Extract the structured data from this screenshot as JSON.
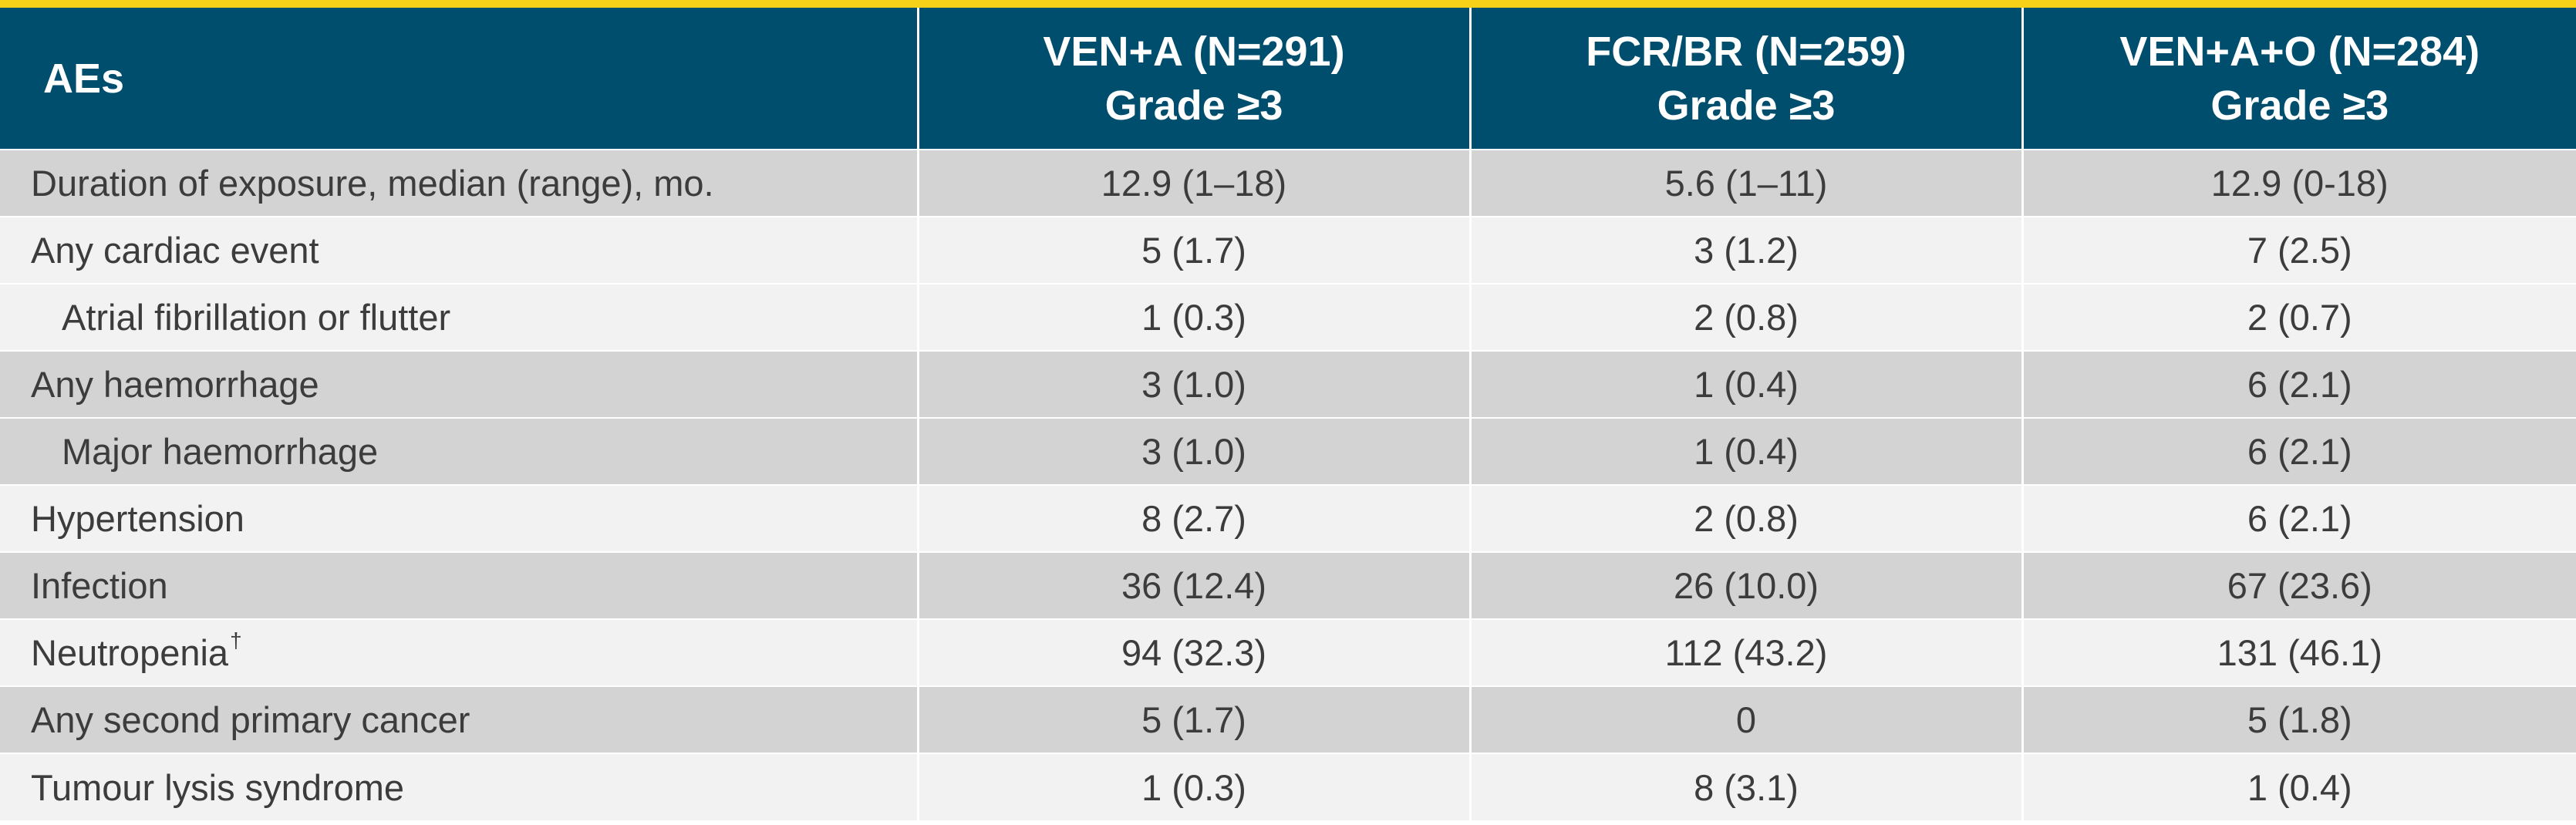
{
  "table": {
    "header": {
      "ae_label": "AEs",
      "columns": [
        {
          "line1": "VEN+A (N=291)",
          "line2": "Grade ≥3"
        },
        {
          "line1": "FCR/BR (N=259)",
          "line2": "Grade ≥3"
        },
        {
          "line1": "VEN+A+O (N=284)",
          "line2": "Grade ≥3"
        }
      ]
    },
    "rows": [
      {
        "label": "Duration of exposure, median (range), mo.",
        "values": [
          "12.9 (1–18)",
          "5.6 (1–11)",
          "12.9 (0-18)"
        ]
      },
      {
        "label": "Any cardiac event",
        "values": [
          "5 (1.7)",
          "3 (1.2)",
          "7 (2.5)"
        ]
      },
      {
        "label": "Atrial fibrillation or flutter",
        "values": [
          "1 (0.3)",
          "2 (0.8)",
          "2 (0.7)"
        ]
      },
      {
        "label": "Any haemorrhage",
        "values": [
          "3 (1.0)",
          "1 (0.4)",
          "6 (2.1)"
        ]
      },
      {
        "label": "Major haemorrhage",
        "values": [
          "3 (1.0)",
          "1 (0.4)",
          "6 (2.1)"
        ]
      },
      {
        "label": "Hypertension",
        "values": [
          "8 (2.7)",
          "2 (0.8)",
          "6 (2.1)"
        ]
      },
      {
        "label": "Infection",
        "values": [
          "36 (12.4)",
          "26 (10.0)",
          "67 (23.6)"
        ]
      },
      {
        "label": "Neutropenia",
        "footnote_mark": "†",
        "values": [
          "94 (32.3)",
          "112 (43.2)",
          "131 (46.1)"
        ]
      },
      {
        "label": "Any second primary cancer",
        "values": [
          "5 (1.7)",
          "0",
          "5 (1.8)"
        ]
      },
      {
        "label": "Tumour lysis syndrome",
        "values": [
          "1 (0.3)",
          "8 (3.1)",
          "1 (0.4)"
        ]
      }
    ]
  },
  "colors": {
    "accent_bar": "#f7d117",
    "header_bg": "#004e6e",
    "row_shaded": "#d3d3d3",
    "row_light": "#f2f2f2",
    "body_text": "#3c3c3c"
  }
}
